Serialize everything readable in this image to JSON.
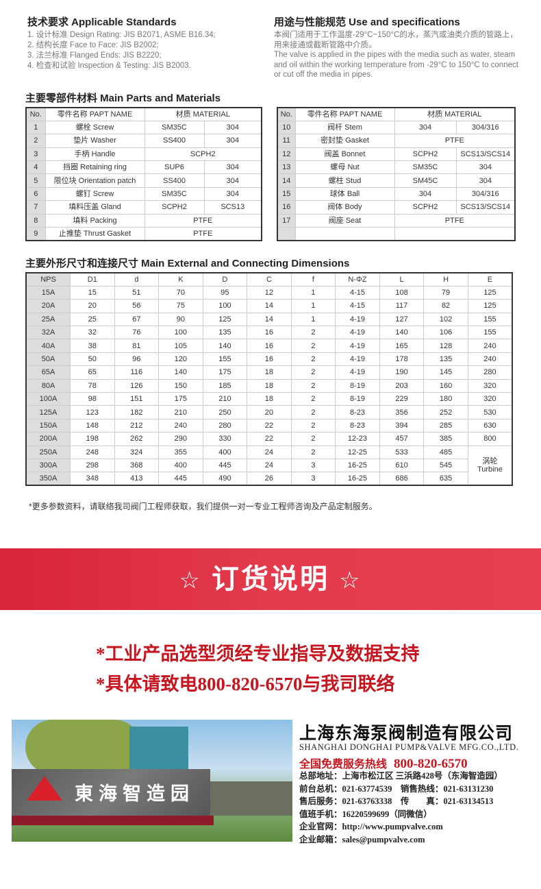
{
  "standards": {
    "title": "技术要求 Applicable Standards",
    "items": [
      "1. 设计标准 Design Rating: JIS B2071, ASME B16.34;",
      "2. 结构长度 Face to Face: JIS B2002;",
      "3. 法兰标准 Flanged Ends: JIS B2220;",
      "4. 检查和试验 Inspection & Testing: JIS B2003."
    ]
  },
  "use": {
    "title": "用途与性能规范 Use and specifications",
    "cn": "本阀门适用于工作温度-29°C~150°C的水，蒸汽或油类介质的管路上，用来接通或截断管路中介质。",
    "en": "The valve is applied in the pipes with the media such as water, steam and oil within the working temperature from -29°C to 150°C to connect or cut off the media in pipes."
  },
  "parts": {
    "title": "主要零部件材料 Main Parts and Materials",
    "headers": [
      "No.",
      "零件名称 PAPT NAME",
      "材质 MATERIAL"
    ],
    "left": [
      [
        "1",
        "螺栓 Screw",
        "SM35C",
        "304"
      ],
      [
        "2",
        "垫片 Washer",
        "SS400",
        "304"
      ],
      [
        "3",
        "手柄 Handle",
        "SCPH2"
      ],
      [
        "4",
        "挡圈 Retaining ring",
        "SUP6",
        "304"
      ],
      [
        "5",
        "限位块 Orientation patch",
        "SS400",
        "304"
      ],
      [
        "6",
        "螺钉 Screw",
        "SM35C",
        "304"
      ],
      [
        "7",
        "填料压盖 Gland",
        "SCPH2",
        "SCS13"
      ],
      [
        "8",
        "填料 Packing",
        "PTFE"
      ],
      [
        "9",
        "止推垫 Thrust Gasket",
        "PTFE"
      ]
    ],
    "right": [
      [
        "10",
        "阀杆 Stem",
        "304",
        "304/316"
      ],
      [
        "11",
        "密封垫 Gasket",
        "PTFE"
      ],
      [
        "12",
        "阀盖 Bonnet",
        "SCPH2",
        "SCS13/SCS14"
      ],
      [
        "13",
        "螺母 Nut",
        "SM35C",
        "304"
      ],
      [
        "14",
        "螺柱 Stud",
        "SM45C",
        "304"
      ],
      [
        "15",
        "球体 Ball",
        "304",
        "304/316"
      ],
      [
        "16",
        "阀体 Body",
        "SCPH2",
        "SCS13/SCS14"
      ],
      [
        "17",
        "阀座 Seat",
        "PTFE"
      ],
      [
        "",
        "",
        ""
      ]
    ]
  },
  "dims": {
    "title": "主要外形尺寸和连接尺寸 Main External and Connecting Dimensions",
    "headers": [
      "NPS",
      "D1",
      "d",
      "K",
      "D",
      "C",
      "f",
      "N-ΦZ",
      "L",
      "H",
      "E"
    ],
    "rows": [
      [
        "15A",
        "15",
        "51",
        "70",
        "95",
        "12",
        "1",
        "4-15",
        "108",
        "79",
        "125"
      ],
      [
        "20A",
        "20",
        "56",
        "75",
        "100",
        "14",
        "1",
        "4-15",
        "117",
        "82",
        "125"
      ],
      [
        "25A",
        "25",
        "67",
        "90",
        "125",
        "14",
        "1",
        "4-19",
        "127",
        "102",
        "155"
      ],
      [
        "32A",
        "32",
        "76",
        "100",
        "135",
        "16",
        "2",
        "4-19",
        "140",
        "106",
        "155"
      ],
      [
        "40A",
        "38",
        "81",
        "105",
        "140",
        "16",
        "2",
        "4-19",
        "165",
        "128",
        "240"
      ],
      [
        "50A",
        "50",
        "96",
        "120",
        "155",
        "16",
        "2",
        "4-19",
        "178",
        "135",
        "240"
      ],
      [
        "65A",
        "65",
        "116",
        "140",
        "175",
        "18",
        "2",
        "4-19",
        "190",
        "145",
        "280"
      ],
      [
        "80A",
        "78",
        "126",
        "150",
        "185",
        "18",
        "2",
        "8-19",
        "203",
        "160",
        "320"
      ],
      [
        "100A",
        "98",
        "151",
        "175",
        "210",
        "18",
        "2",
        "8-19",
        "229",
        "180",
        "320"
      ],
      [
        "125A",
        "123",
        "182",
        "210",
        "250",
        "20",
        "2",
        "8-23",
        "356",
        "252",
        "530"
      ],
      [
        "150A",
        "148",
        "212",
        "240",
        "280",
        "22",
        "2",
        "8-23",
        "394",
        "285",
        "630"
      ],
      [
        "200A",
        "198",
        "262",
        "290",
        "330",
        "22",
        "2",
        "12-23",
        "457",
        "385",
        "800"
      ],
      [
        "250A",
        "248",
        "324",
        "355",
        "400",
        "24",
        "2",
        "12-25",
        "533",
        "485"
      ],
      [
        "300A",
        "298",
        "368",
        "400",
        "445",
        "24",
        "3",
        "16-25",
        "610",
        "545"
      ],
      [
        "350A",
        "348",
        "413",
        "445",
        "490",
        "26",
        "3",
        "16-25",
        "686",
        "635"
      ]
    ],
    "turbine_cn": "涡轮",
    "turbine_en": "Turbine"
  },
  "note": "*更多参数资料，请联络我司阀门工程师获取，我们提供一对一专业工程师咨询及产品定制服务。",
  "banner": {
    "star": "☆",
    "title": "订货说明"
  },
  "order_lines": [
    "*工业产品选型须经专业指导及数据支持",
    "*具体请致电800-820-6570与我司联络"
  ],
  "photo": {
    "sign": "東海智造园"
  },
  "company": {
    "name_cn": "上海东海泵阀制造有限公司",
    "name_en": "SHANGHAI DONGHAI PUMP&VALVE MFG.CO.,LTD.",
    "hotline_label": "全国免费服务热线",
    "hotline": "800-820-6570",
    "lines": [
      "总部地址：上海市松江区 三浜路428号（东海智造园）",
      "前台总机：021-63774539　销售热线：021-63131230",
      "售后服务：021-63763338　传　　真：021-63134513",
      "值班手机：16220599699（同微信）",
      "企业官网：http://www.pumpvalve.com",
      "企业邮箱：sales@pumpvalve.com"
    ]
  },
  "colors": {
    "accent_red": "#c5161f",
    "banner_red": "#e0324a"
  }
}
